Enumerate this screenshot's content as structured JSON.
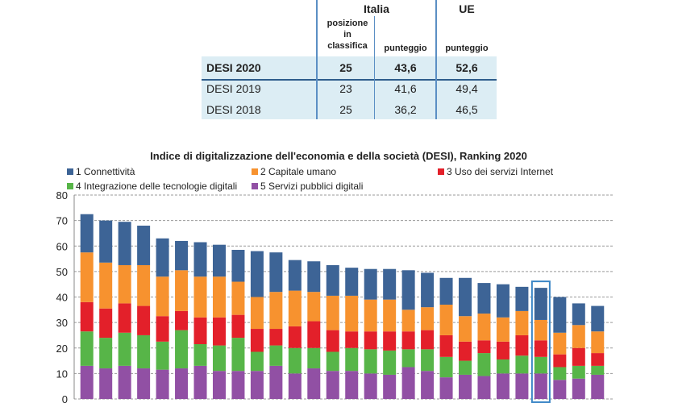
{
  "table": {
    "group_headers": [
      "Italia",
      "UE"
    ],
    "sub_headers": [
      "posizione in classifica",
      "punteggio",
      "punteggio"
    ],
    "rows": [
      [
        "DESI 2020",
        "25",
        "43,6",
        "52,6"
      ],
      [
        "DESI 2019",
        "23",
        "41,6",
        "49,4"
      ],
      [
        "DESI 2018",
        "25",
        "36,2",
        "46,5"
      ]
    ]
  },
  "chart_data": {
    "type": "stacked_bar",
    "title": "Indice di digitalizzazione dell'economia e della società (DESI), Ranking 2020",
    "categories": [
      null,
      null,
      null,
      null,
      null,
      null,
      null,
      null,
      null,
      null,
      null,
      null,
      null,
      null,
      null,
      null,
      null,
      null,
      null,
      null,
      null,
      null,
      null,
      null,
      null,
      null,
      null,
      null
    ],
    "series": [
      {
        "name": "1 Connettività",
        "color": "#3d6496",
        "values": [
          15,
          16.5,
          17,
          15.5,
          15,
          11.5,
          13.5,
          12.5,
          12.5,
          18,
          15.5,
          12,
          12,
          12,
          11,
          12,
          12,
          15.5,
          13.5,
          10.5,
          15,
          12,
          13,
          9.5,
          12.6,
          14,
          8.5,
          10
        ]
      },
      {
        "name": "2 Capitale umano",
        "color": "#f7922f",
        "values": [
          19.5,
          18,
          15,
          16,
          15.5,
          16,
          16,
          16,
          13,
          12.5,
          14.5,
          14,
          11.5,
          13.5,
          14,
          12.5,
          12.5,
          8.5,
          9,
          12,
          10,
          10.5,
          9.5,
          9.5,
          8,
          8.5,
          9,
          8.5
        ]
      },
      {
        "name": "3 Uso dei servizi Internet",
        "color": "#e3202a",
        "values": [
          11.5,
          11.5,
          11.5,
          11.5,
          10,
          7.5,
          10.5,
          11,
          9,
          9,
          6.5,
          8.5,
          10.5,
          8.5,
          6.5,
          7,
          7.5,
          7,
          7.5,
          8.5,
          7.5,
          5,
          7,
          8,
          6.5,
          5,
          7,
          5
        ]
      },
      {
        "name": "4 Integrazione delle tecnologie digitali",
        "color": "#57b548",
        "values": [
          13.5,
          12,
          13,
          13,
          11,
          15,
          8.5,
          10,
          13,
          7.5,
          8,
          10,
          8,
          7.5,
          9,
          9.5,
          9.5,
          7,
          8.5,
          8,
          5.5,
          9,
          5.5,
          7,
          6.5,
          5,
          5,
          3.5
        ]
      },
      {
        "name": "5 Servizi pubblici digitali",
        "color": "#9150a4",
        "values": [
          13,
          12,
          13,
          12,
          11.5,
          12,
          13,
          11,
          11,
          11,
          13,
          10,
          12,
          11,
          11,
          10,
          9.5,
          12.5,
          11,
          8.5,
          9.5,
          9,
          10,
          10,
          10,
          7.5,
          8,
          9.5
        ]
      }
    ],
    "ylim": [
      0,
      80
    ],
    "yticks": [
      0,
      10,
      20,
      30,
      40,
      50,
      60,
      70,
      80
    ],
    "grid": true,
    "highlight": 24
  }
}
